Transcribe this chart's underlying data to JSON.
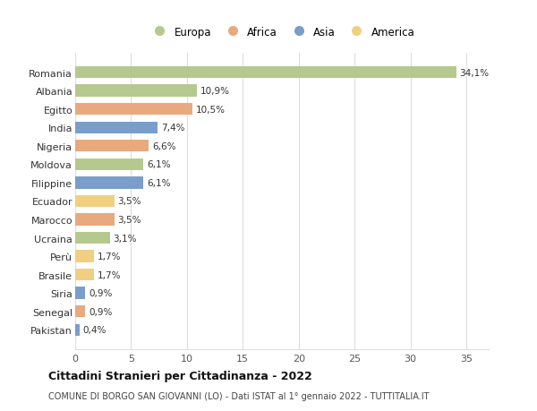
{
  "countries": [
    "Romania",
    "Albania",
    "Egitto",
    "India",
    "Nigeria",
    "Moldova",
    "Filippine",
    "Ecuador",
    "Marocco",
    "Ucraina",
    "Perù",
    "Brasile",
    "Siria",
    "Senegal",
    "Pakistan"
  ],
  "values": [
    34.1,
    10.9,
    10.5,
    7.4,
    6.6,
    6.1,
    6.1,
    3.5,
    3.5,
    3.1,
    1.7,
    1.7,
    0.9,
    0.9,
    0.4
  ],
  "labels": [
    "34,1%",
    "10,9%",
    "10,5%",
    "7,4%",
    "6,6%",
    "6,1%",
    "6,1%",
    "3,5%",
    "3,5%",
    "3,1%",
    "1,7%",
    "1,7%",
    "0,9%",
    "0,9%",
    "0,4%"
  ],
  "colors": [
    "#b5c98e",
    "#b5c98e",
    "#e8a97e",
    "#7a9ec9",
    "#e8a97e",
    "#b5c98e",
    "#7a9ec9",
    "#f0d080",
    "#e8a97e",
    "#b5c98e",
    "#f0d080",
    "#f0d080",
    "#7a9ec9",
    "#e8a97e",
    "#7a9ec9"
  ],
  "continents": [
    "Europa",
    "Africa",
    "Asia",
    "America"
  ],
  "legend_colors": [
    "#b5c98e",
    "#e8a97e",
    "#7a9ec9",
    "#f0d080"
  ],
  "title": "Cittadini Stranieri per Cittadinanza - 2022",
  "subtitle": "COMUNE DI BORGO SAN GIOVANNI (LO) - Dati ISTAT al 1° gennaio 2022 - TUTTITALIA.IT",
  "xlim": [
    0,
    37
  ],
  "bg_color": "#ffffff",
  "grid_color": "#dddddd"
}
